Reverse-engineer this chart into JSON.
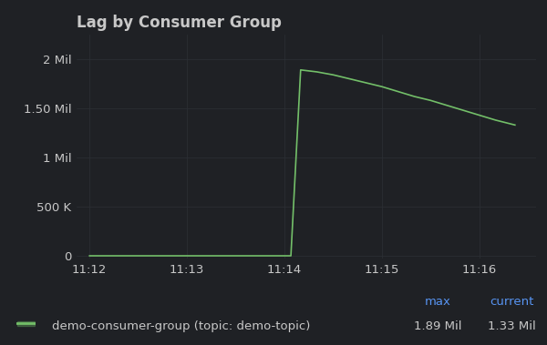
{
  "title": "Lag by Consumer Group",
  "bg_color": "#1f2125",
  "plot_bg_color": "#1f2125",
  "grid_color": "#2c3035",
  "text_color": "#c8c8c8",
  "line_color": "#73bf69",
  "x_ticks": [
    "11:12",
    "11:13",
    "11:14",
    "11:15",
    "11:16"
  ],
  "x_tick_positions": [
    0,
    60,
    120,
    180,
    240
  ],
  "y_ticks_labels": [
    "0",
    "500 K",
    "1 Mil",
    "1.50 Mil",
    "2 Mil"
  ],
  "y_tick_positions": [
    0,
    500000,
    1000000,
    1500000,
    2000000
  ],
  "ylim": [
    -30000,
    2250000
  ],
  "xlim": [
    -8,
    275
  ],
  "series_x": [
    0,
    10,
    20,
    30,
    40,
    50,
    60,
    70,
    80,
    90,
    100,
    110,
    120,
    124,
    130,
    140,
    150,
    160,
    170,
    180,
    190,
    200,
    210,
    220,
    230,
    240,
    250,
    262
  ],
  "series_y": [
    0,
    0,
    0,
    0,
    0,
    0,
    0,
    0,
    0,
    0,
    0,
    0,
    0,
    0,
    1890000,
    1870000,
    1840000,
    1800000,
    1760000,
    1720000,
    1670000,
    1620000,
    1580000,
    1530000,
    1480000,
    1430000,
    1380000,
    1330000
  ],
  "legend_label": "demo-consumer-group (topic: demo-topic)",
  "legend_max": "1.89 Mil",
  "legend_current": "1.33 Mil",
  "max_label_color": "#5794f2",
  "current_label_color": "#5794f2",
  "title_fontsize": 12,
  "axis_fontsize": 9.5,
  "legend_fontsize": 9.5
}
